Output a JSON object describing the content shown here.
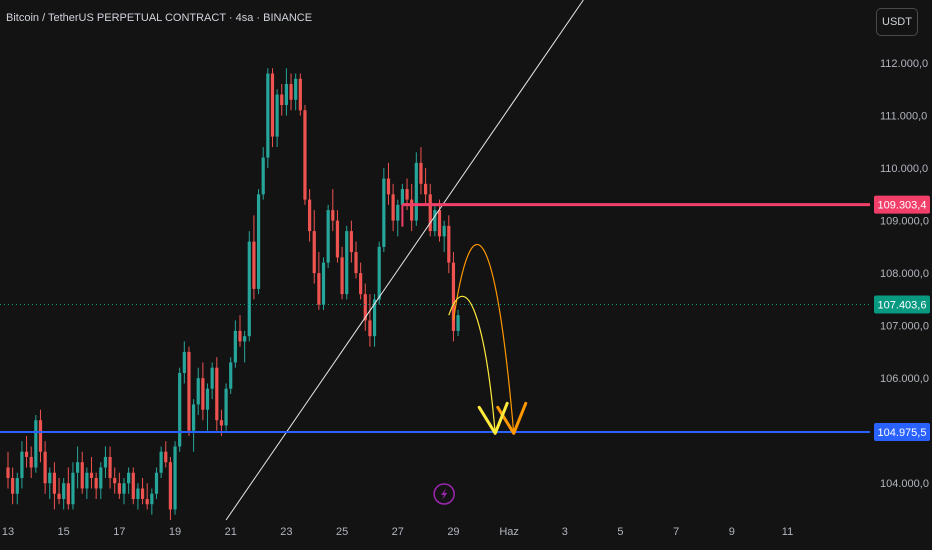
{
  "header": {
    "title": "Bitcoin / TetherUS PERPETUAL CONTRACT · 4sa · BINANCE",
    "currency_button": "USDT"
  },
  "icons": {
    "event_marker": "lightning-icon"
  },
  "colors": {
    "background": "#131313",
    "up": "#26a69a",
    "down": "#ef5350",
    "resistance": "#f23f6a",
    "support": "#2962ff",
    "price": "#089981",
    "trendline": "#e8e8e8",
    "path_yellow": "#ffeb3b",
    "path_orange": "#ff9800",
    "event": "#9c27b0"
  },
  "chart_data": {
    "type": "candlestick",
    "y_axis": {
      "ticks": [
        "112.000,0",
        "111.000,0",
        "110.000,0",
        "109.000,0",
        "108.000,0",
        "107.000,0",
        "106.000,0",
        "104.000,0"
      ],
      "tick_values": [
        112000,
        111000,
        110000,
        109000,
        108000,
        107000,
        106000,
        104000
      ],
      "range": [
        103300,
        113200
      ]
    },
    "x_axis": {
      "ticks": [
        "13",
        "15",
        "17",
        "19",
        "21",
        "23",
        "25",
        "27",
        "29",
        "Haz",
        "3",
        "5",
        "7",
        "9",
        "11"
      ],
      "tick_index": [
        0,
        12,
        24,
        36,
        48,
        60,
        72,
        84,
        96,
        108,
        120,
        132,
        144,
        156,
        168
      ]
    },
    "candles": [
      [
        104300,
        104600,
        103900,
        104100
      ],
      [
        104100,
        104300,
        103600,
        103800
      ],
      [
        103800,
        104200,
        103600,
        104100
      ],
      [
        104100,
        104800,
        103900,
        104600
      ],
      [
        104600,
        104900,
        104300,
        104500
      ],
      [
        104500,
        104700,
        104100,
        104300
      ],
      [
        104300,
        105300,
        104200,
        105200
      ],
      [
        105200,
        105400,
        104400,
        104600
      ],
      [
        104600,
        104800,
        103800,
        104000
      ],
      [
        104000,
        104300,
        103700,
        104200
      ],
      [
        104200,
        104400,
        103500,
        103800
      ],
      [
        103800,
        104100,
        103600,
        103700
      ],
      [
        103700,
        104100,
        103500,
        104000
      ],
      [
        104000,
        104300,
        103500,
        103600
      ],
      [
        103600,
        104400,
        103500,
        104200
      ],
      [
        104200,
        104700,
        103900,
        104400
      ],
      [
        104400,
        104600,
        103800,
        103900
      ],
      [
        103900,
        104300,
        103700,
        104200
      ],
      [
        104200,
        104500,
        103900,
        104100
      ],
      [
        104100,
        104200,
        103700,
        103900
      ],
      [
        103900,
        104400,
        103700,
        104300
      ],
      [
        104300,
        104700,
        104100,
        104500
      ],
      [
        104500,
        104700,
        103900,
        104100
      ],
      [
        104100,
        104300,
        103800,
        104000
      ],
      [
        104000,
        104200,
        103700,
        103800
      ],
      [
        103800,
        104100,
        103600,
        104000
      ],
      [
        104000,
        104300,
        103800,
        104200
      ],
      [
        104200,
        104300,
        103600,
        103700
      ],
      [
        103700,
        104000,
        103500,
        103900
      ],
      [
        103900,
        104100,
        103600,
        103700
      ],
      [
        103700,
        104000,
        103500,
        103600
      ],
      [
        103600,
        103900,
        103400,
        103800
      ],
      [
        103800,
        104300,
        103700,
        104200
      ],
      [
        104200,
        104700,
        104100,
        104600
      ],
      [
        104600,
        104800,
        104300,
        104400
      ],
      [
        104400,
        104500,
        103300,
        103500
      ],
      [
        103500,
        104800,
        103400,
        104700
      ],
      [
        104700,
        106200,
        104600,
        106100
      ],
      [
        106100,
        106700,
        105900,
        106500
      ],
      [
        106500,
        106600,
        104900,
        105000
      ],
      [
        105000,
        105600,
        104600,
        105500
      ],
      [
        105500,
        106200,
        105300,
        106000
      ],
      [
        106000,
        106300,
        105200,
        105400
      ],
      [
        105400,
        105900,
        105000,
        105800
      ],
      [
        105800,
        106300,
        105600,
        106200
      ],
      [
        106200,
        106400,
        105000,
        105200
      ],
      [
        105200,
        105400,
        104900,
        105100
      ],
      [
        105100,
        105900,
        105000,
        105800
      ],
      [
        105800,
        106400,
        105700,
        106300
      ],
      [
        106300,
        107100,
        106200,
        106900
      ],
      [
        106900,
        107200,
        106600,
        106700
      ],
      [
        106700,
        106900,
        106300,
        106800
      ],
      [
        106800,
        108800,
        106700,
        108600
      ],
      [
        108600,
        109100,
        107500,
        107700
      ],
      [
        107700,
        109600,
        107600,
        109500
      ],
      [
        109500,
        110400,
        109400,
        110200
      ],
      [
        110200,
        111900,
        110000,
        111800
      ],
      [
        111800,
        111900,
        110400,
        110600
      ],
      [
        110600,
        111500,
        110400,
        111400
      ],
      [
        111400,
        111600,
        111000,
        111200
      ],
      [
        111200,
        111900,
        111000,
        111600
      ],
      [
        111600,
        111800,
        111100,
        111300
      ],
      [
        111300,
        111800,
        111100,
        111700
      ],
      [
        111700,
        111800,
        111000,
        111100
      ],
      [
        111100,
        111200,
        109300,
        109400
      ],
      [
        109400,
        109600,
        108600,
        108800
      ],
      [
        108800,
        109200,
        107800,
        108000
      ],
      [
        108000,
        108400,
        107300,
        107400
      ],
      [
        107400,
        108300,
        107300,
        108200
      ],
      [
        108200,
        109300,
        108100,
        109200
      ],
      [
        109200,
        109600,
        108800,
        109000
      ],
      [
        109000,
        109200,
        108200,
        108300
      ],
      [
        108300,
        108500,
        107500,
        107600
      ],
      [
        107600,
        108900,
        107500,
        108800
      ],
      [
        108800,
        109000,
        108200,
        108400
      ],
      [
        108400,
        108600,
        107900,
        108000
      ],
      [
        108000,
        108200,
        107500,
        107600
      ],
      [
        107600,
        107800,
        106900,
        107100
      ],
      [
        107100,
        107600,
        106600,
        106800
      ],
      [
        106800,
        107600,
        106600,
        107500
      ],
      [
        107500,
        108600,
        107400,
        108500
      ],
      [
        108500,
        110000,
        108400,
        109800
      ],
      [
        109800,
        110100,
        109300,
        109500
      ],
      [
        109500,
        109700,
        108800,
        109000
      ],
      [
        109000,
        109400,
        108700,
        109300
      ],
      [
        109300,
        109700,
        109000,
        109600
      ],
      [
        109600,
        109800,
        109200,
        109400
      ],
      [
        109400,
        109700,
        108800,
        109000
      ],
      [
        109000,
        110300,
        108900,
        110100
      ],
      [
        110100,
        110400,
        109500,
        109700
      ],
      [
        109700,
        110000,
        109300,
        109500
      ],
      [
        109500,
        109700,
        108700,
        108800
      ],
      [
        108800,
        109300,
        108700,
        109200
      ],
      [
        109200,
        109400,
        108600,
        108700
      ],
      [
        108700,
        109000,
        108400,
        108900
      ],
      [
        108900,
        109100,
        108000,
        108200
      ],
      [
        108200,
        108400,
        106700,
        106900
      ],
      [
        106900,
        107300,
        106800,
        107200
      ]
    ],
    "levels": [
      {
        "name": "resistance",
        "value": 109303.4,
        "label": "109.303,4"
      },
      {
        "name": "current-price",
        "value": 107403.6,
        "label": "107.403,6"
      },
      {
        "name": "support",
        "value": 104975.5,
        "label": "104.975,5"
      }
    ],
    "trendline": [
      [
        47,
        103300
      ],
      [
        124,
        113200
      ]
    ],
    "projections": {
      "yellow": [
        [
          95,
          107200
        ],
        [
          99,
          108200
        ],
        [
          103,
          107000
        ],
        [
          105,
          104950
        ]
      ],
      "orange": [
        [
          96,
          107100
        ],
        [
          100,
          109500
        ],
        [
          105,
          109000
        ],
        [
          109,
          104950
        ]
      ]
    },
    "event_marker_index": 94
  }
}
